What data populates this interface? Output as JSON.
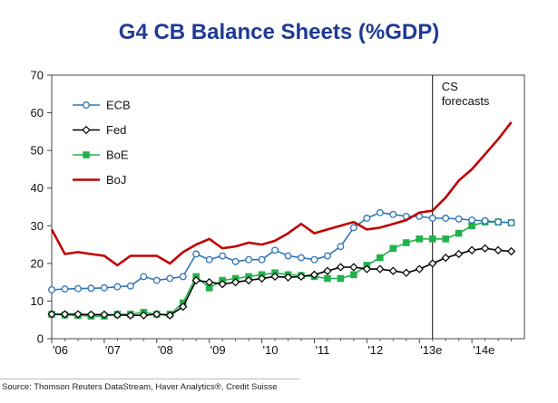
{
  "chart_data": {
    "type": "line",
    "title": "G4 CB Balance Sheets (%GDP)",
    "source": "Source: Thomson Reuters DataStream, Haver Analytics®, Credit Suisse",
    "annotation": "CS forecasts",
    "ylim": [
      0,
      70
    ],
    "yticks": [
      0,
      10,
      20,
      30,
      40,
      50,
      60,
      70
    ],
    "xlim": [
      2006,
      2015
    ],
    "xticks": [
      {
        "value": 2006,
        "label": "'06"
      },
      {
        "value": 2007,
        "label": "'07"
      },
      {
        "value": 2008,
        "label": "'08"
      },
      {
        "value": 2009,
        "label": "'09"
      },
      {
        "value": 2010,
        "label": "'10"
      },
      {
        "value": 2011,
        "label": "'11"
      },
      {
        "value": 2012,
        "label": "'12"
      },
      {
        "value": 2013,
        "label": "'13e"
      },
      {
        "value": 2014,
        "label": "'14e"
      }
    ],
    "forecast_start": 2013.25,
    "grid": false,
    "legend_position": "top-left",
    "series": [
      {
        "name": "ECB",
        "color": "#2e75b6",
        "marker": "circle",
        "x": [
          2006.0,
          2006.25,
          2006.5,
          2006.75,
          2007.0,
          2007.25,
          2007.5,
          2007.75,
          2008.0,
          2008.25,
          2008.5,
          2008.75,
          2009.0,
          2009.25,
          2009.5,
          2009.75,
          2010.0,
          2010.25,
          2010.5,
          2010.75,
          2011.0,
          2011.25,
          2011.5,
          2011.75,
          2012.0,
          2012.25,
          2012.5,
          2012.75,
          2013.0,
          2013.25,
          2013.5,
          2013.75,
          2014.0,
          2014.25,
          2014.5,
          2014.75
        ],
        "y": [
          13,
          13.2,
          13.3,
          13.4,
          13.5,
          13.8,
          14,
          16.5,
          15.5,
          16,
          16.5,
          22.5,
          21,
          22,
          20.5,
          21,
          21,
          23.5,
          22,
          21.5,
          21,
          22,
          24.5,
          29.5,
          32,
          33.5,
          33,
          32.5,
          32.5,
          32,
          32,
          31.8,
          31.5,
          31.3,
          31,
          30.8
        ]
      },
      {
        "name": "Fed",
        "color": "#000000",
        "marker": "diamond",
        "x": [
          2006.0,
          2006.25,
          2006.5,
          2006.75,
          2007.0,
          2007.25,
          2007.5,
          2007.75,
          2008.0,
          2008.25,
          2008.5,
          2008.75,
          2009.0,
          2009.25,
          2009.5,
          2009.75,
          2010.0,
          2010.25,
          2010.5,
          2010.75,
          2011.0,
          2011.25,
          2011.5,
          2011.75,
          2012.0,
          2012.25,
          2012.5,
          2012.75,
          2013.0,
          2013.25,
          2013.5,
          2013.75,
          2014.0,
          2014.25,
          2014.5,
          2014.75
        ],
        "y": [
          6.5,
          6.5,
          6.5,
          6.4,
          6.4,
          6.3,
          6.2,
          6.2,
          6.5,
          6.2,
          8.5,
          15.5,
          15,
          14.5,
          15,
          15.5,
          16,
          16.5,
          16.3,
          16.5,
          17,
          18,
          19,
          19,
          18.5,
          18.5,
          18,
          17.5,
          18.5,
          20,
          21.5,
          22.5,
          23.5,
          24,
          23.5,
          23.2
        ]
      },
      {
        "name": "BoE",
        "color": "#22b24c",
        "marker": "square",
        "x": [
          2006.0,
          2006.25,
          2006.5,
          2006.75,
          2007.0,
          2007.25,
          2007.5,
          2007.75,
          2008.0,
          2008.25,
          2008.5,
          2008.75,
          2009.0,
          2009.25,
          2009.5,
          2009.75,
          2010.0,
          2010.25,
          2010.5,
          2010.75,
          2011.0,
          2011.25,
          2011.5,
          2011.75,
          2012.0,
          2012.25,
          2012.5,
          2012.75,
          2013.0,
          2013.25,
          2013.5,
          2013.75,
          2014.0,
          2014.25,
          2014.5,
          2014.75
        ],
        "y": [
          6.5,
          6.3,
          6.2,
          6,
          6,
          6.5,
          6.5,
          7,
          6.5,
          6.5,
          9.5,
          16.5,
          13.5,
          15.5,
          16,
          16.5,
          17,
          17.5,
          17,
          16.8,
          16.5,
          16,
          16,
          17,
          19.5,
          21.5,
          24,
          25.5,
          26.5,
          26.5,
          26.5,
          28,
          30,
          31,
          31,
          30.8
        ]
      },
      {
        "name": "BoJ",
        "color": "#c00000",
        "marker": "none",
        "x": [
          2006.0,
          2006.25,
          2006.5,
          2006.75,
          2007.0,
          2007.25,
          2007.5,
          2007.75,
          2008.0,
          2008.25,
          2008.5,
          2008.75,
          2009.0,
          2009.25,
          2009.5,
          2009.75,
          2010.0,
          2010.25,
          2010.5,
          2010.75,
          2011.0,
          2011.25,
          2011.5,
          2011.75,
          2012.0,
          2012.25,
          2012.5,
          2012.75,
          2013.0,
          2013.25,
          2013.5,
          2013.75,
          2014.0,
          2014.25,
          2014.5,
          2014.75
        ],
        "y": [
          29,
          22.5,
          23,
          22.5,
          22,
          19.5,
          22,
          22,
          22,
          20,
          23,
          25,
          26.5,
          24,
          24.5,
          25.5,
          25,
          26,
          28,
          30.5,
          28,
          29,
          30,
          31,
          29,
          29.5,
          30.5,
          31.5,
          33.5,
          34,
          37.5,
          42,
          45,
          49,
          53,
          57.5
        ]
      }
    ]
  }
}
